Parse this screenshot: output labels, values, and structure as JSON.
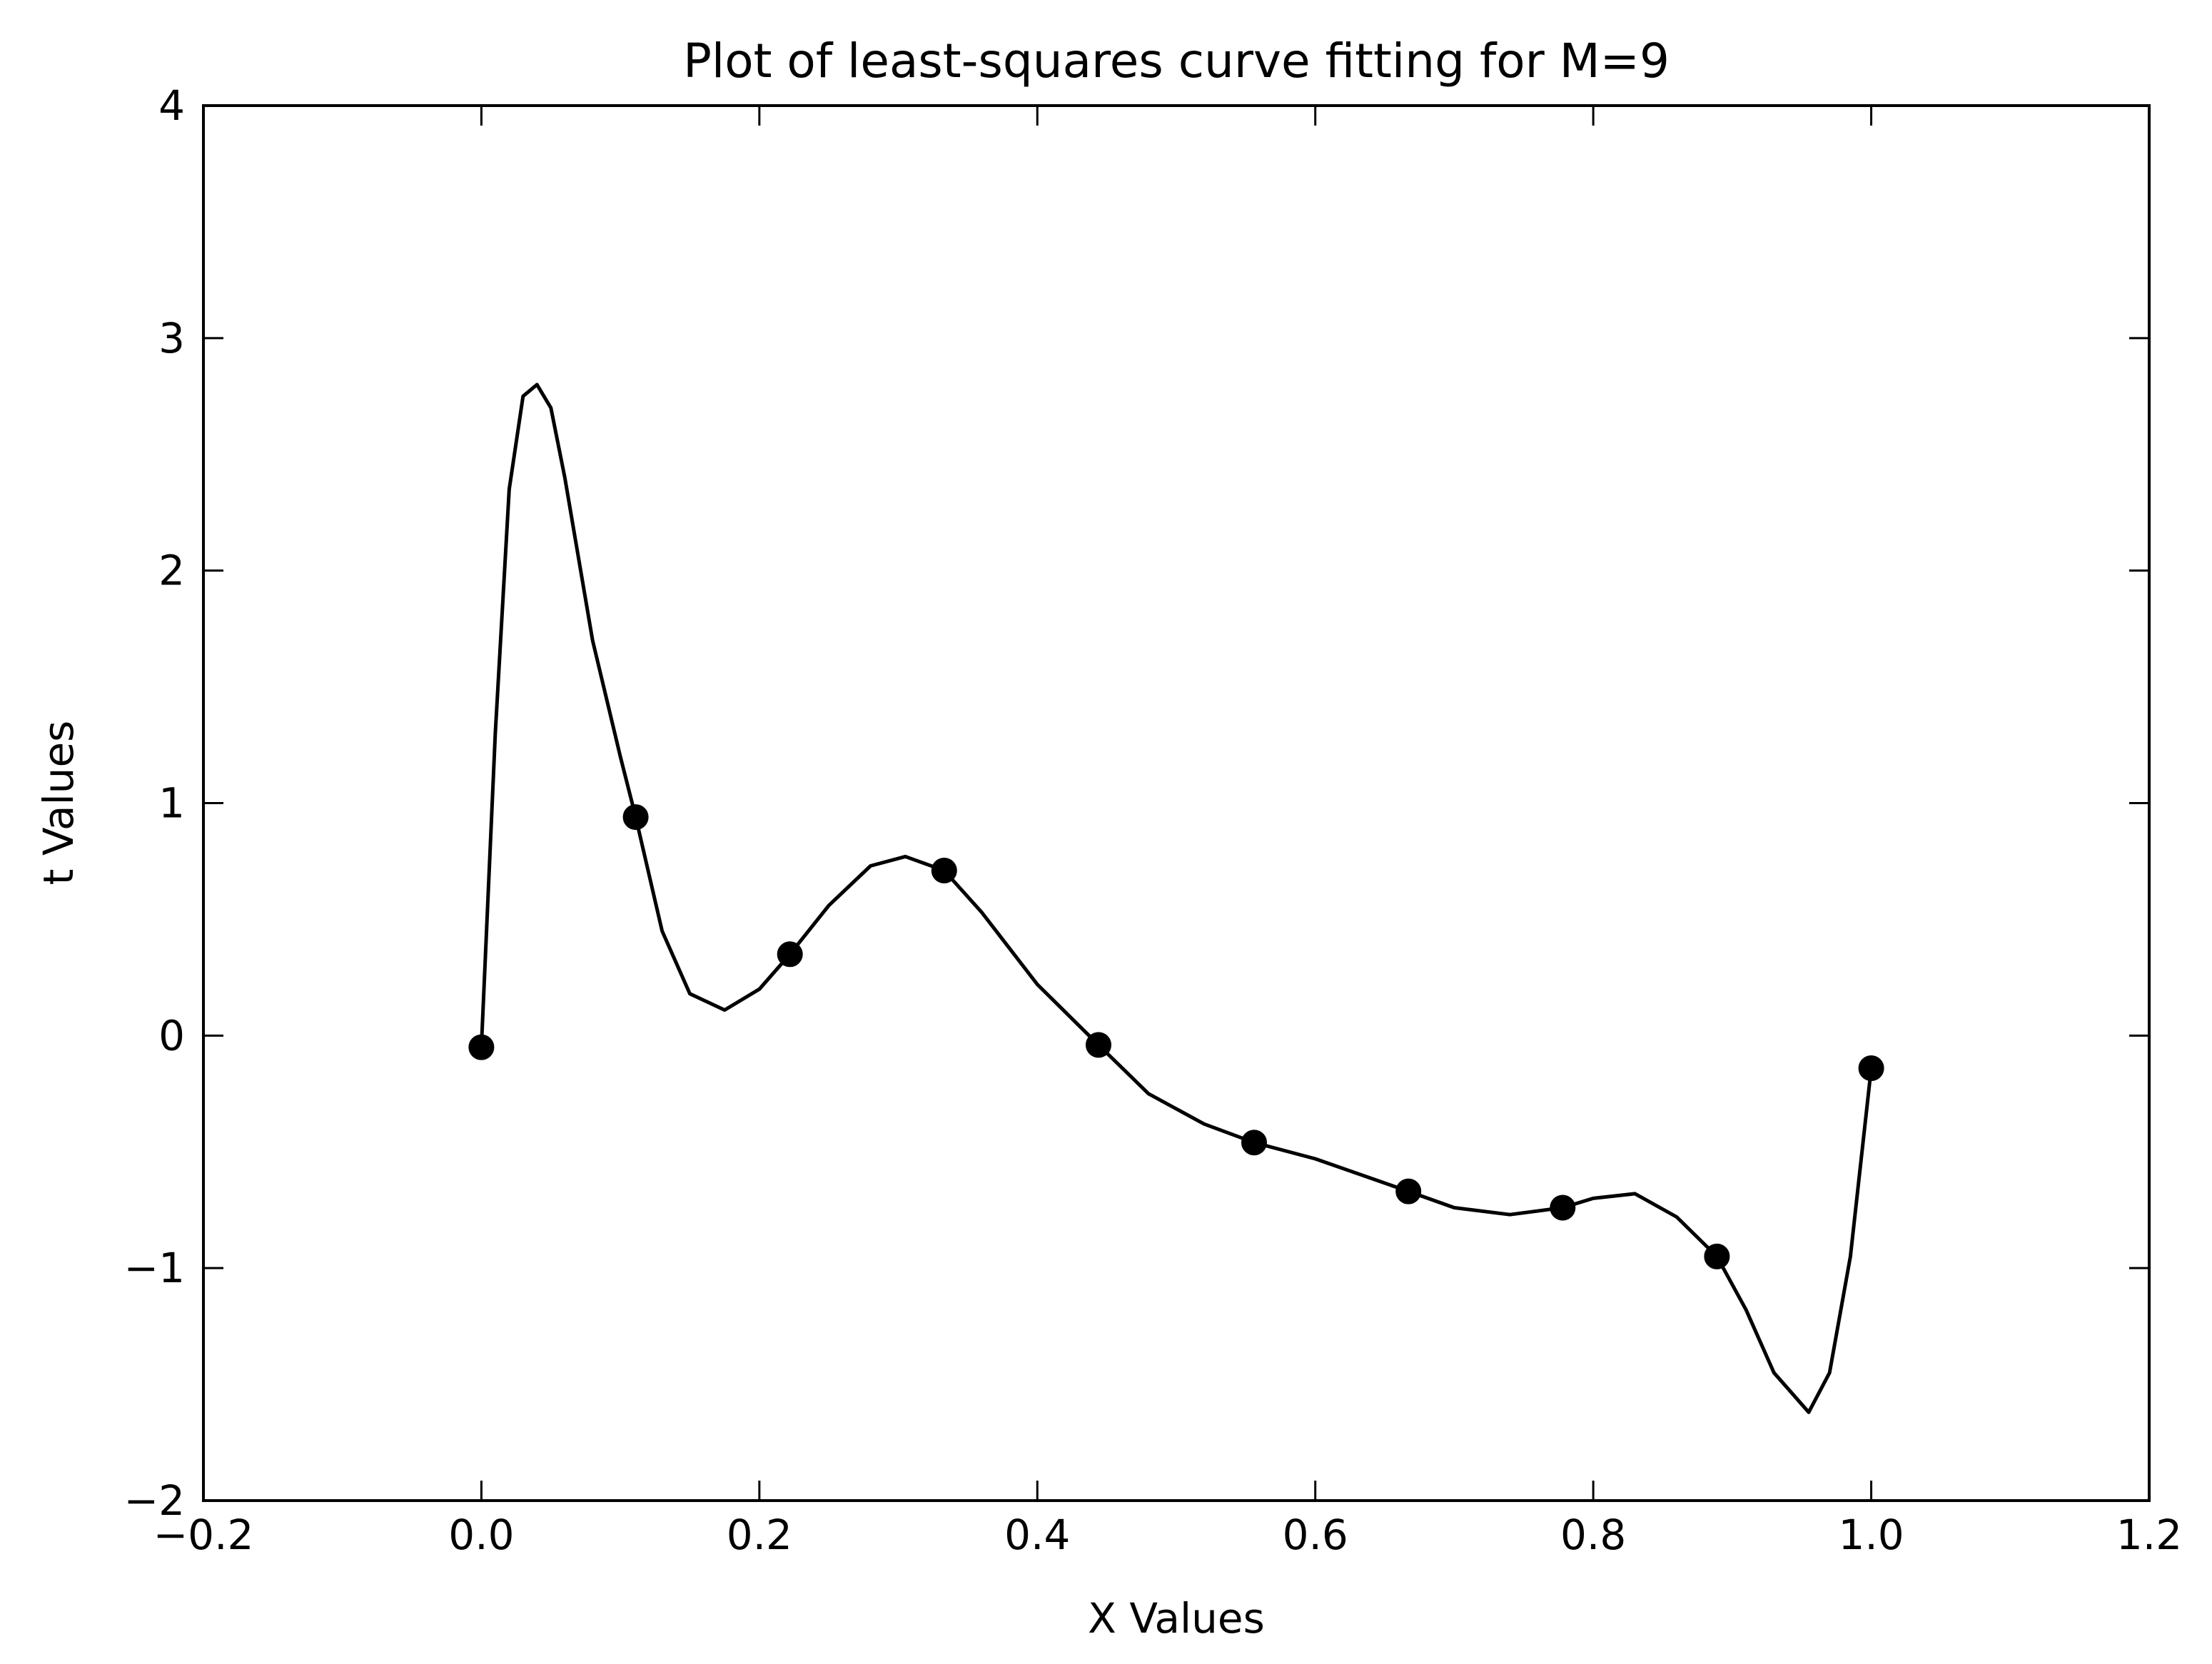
{
  "chart_data": {
    "type": "scatter",
    "title": "Plot of least-squares curve fitting for M=9",
    "xlabel": "X Values",
    "ylabel": "t Values",
    "xlim": [
      -0.2,
      1.2
    ],
    "ylim": [
      -2,
      4
    ],
    "grid": false,
    "x_ticks": [
      -0.2,
      0.0,
      0.2,
      0.4,
      0.6,
      0.8,
      1.0,
      1.2
    ],
    "x_tick_labels": [
      "−0.2",
      "0.0",
      "0.2",
      "0.4",
      "0.6",
      "0.8",
      "1.0",
      "1.2"
    ],
    "y_ticks": [
      -2,
      -1,
      0,
      1,
      2,
      3,
      4
    ],
    "y_tick_labels": [
      "−2",
      "−1",
      "0",
      "1",
      "2",
      "3",
      "4"
    ],
    "colors": {
      "points": "#000000",
      "line": "#000000"
    },
    "series": [
      {
        "kind": "points",
        "x": [
          0.0,
          0.111,
          0.222,
          0.333,
          0.444,
          0.556,
          0.667,
          0.778,
          0.889,
          1.0
        ],
        "y": [
          -0.05,
          0.94,
          0.35,
          0.71,
          -0.04,
          -0.46,
          -0.67,
          -0.74,
          -0.95,
          -0.14
        ]
      },
      {
        "kind": "line",
        "x": [
          0.0,
          0.01,
          0.02,
          0.03,
          0.04,
          0.05,
          0.06,
          0.08,
          0.1,
          0.111,
          0.13,
          0.15,
          0.175,
          0.2,
          0.222,
          0.25,
          0.28,
          0.305,
          0.333,
          0.36,
          0.4,
          0.444,
          0.48,
          0.52,
          0.556,
          0.6,
          0.667,
          0.7,
          0.74,
          0.778,
          0.8,
          0.83,
          0.86,
          0.889,
          0.91,
          0.93,
          0.955,
          0.97,
          0.985,
          1.0
        ],
        "y": [
          -0.05,
          1.3,
          2.35,
          2.75,
          2.8,
          2.7,
          2.4,
          1.7,
          1.2,
          0.94,
          0.45,
          0.18,
          0.11,
          0.2,
          0.35,
          0.56,
          0.73,
          0.77,
          0.71,
          0.53,
          0.22,
          -0.04,
          -0.25,
          -0.38,
          -0.46,
          -0.53,
          -0.67,
          -0.74,
          -0.77,
          -0.74,
          -0.7,
          -0.68,
          -0.78,
          -0.95,
          -1.18,
          -1.45,
          -1.62,
          -1.45,
          -0.95,
          -0.14
        ]
      }
    ]
  }
}
